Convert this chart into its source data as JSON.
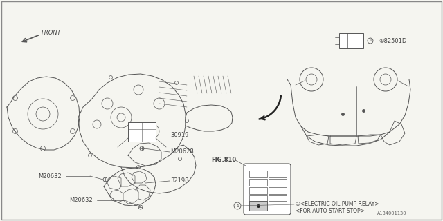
{
  "background_color": "#f5f5f0",
  "border_color": "#888888",
  "diagram_code": "A184001130",
  "fig_ref": "FIG.810",
  "labels": {
    "M20632_top": "M20632",
    "M20632_mid": "M20632",
    "part_32198": "32198",
    "M20628": "M20628",
    "part_30919": "30919",
    "relay_label1": "①<ELECTRIC OIL PUMP RELAY>",
    "relay_label2": "<FOR AUTO START STOP>",
    "part_82501D": "①82501D",
    "front_label": "FRONT"
  },
  "lc": "#555555",
  "tc": "#444444",
  "font_size": 6.0,
  "font_size_sm": 5.5
}
